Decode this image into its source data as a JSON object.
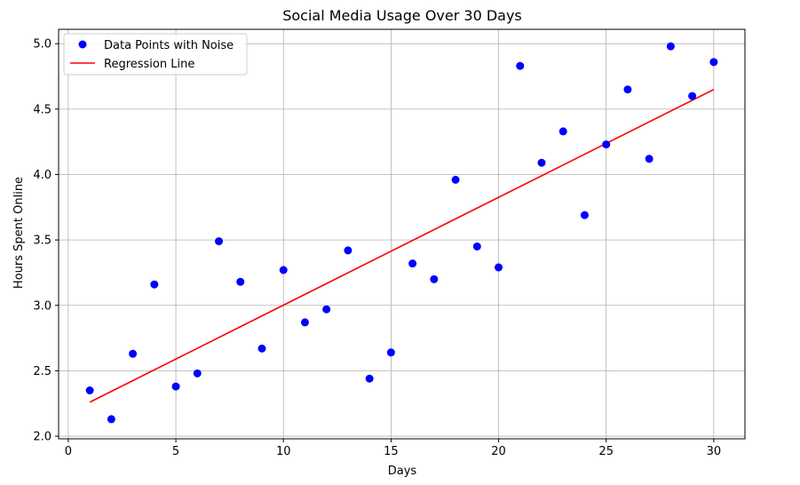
{
  "chart_data": {
    "type": "scatter",
    "title": "Social Media Usage Over 30 Days",
    "xlabel": "Days",
    "ylabel": "Hours Spent Online",
    "xlim": [
      -0.45,
      31.45
    ],
    "ylim": [
      1.98,
      5.11
    ],
    "x_ticks": [
      0,
      5,
      10,
      15,
      20,
      25,
      30
    ],
    "x_tick_labels": [
      "0",
      "5",
      "10",
      "15",
      "20",
      "25",
      "30"
    ],
    "y_ticks": [
      2.0,
      2.5,
      3.0,
      3.5,
      4.0,
      4.5,
      5.0
    ],
    "y_tick_labels": [
      "2.0",
      "2.5",
      "3.0",
      "3.5",
      "4.0",
      "4.5",
      "5.0"
    ],
    "grid": true,
    "legend_position": "top-left",
    "series": [
      {
        "name": "Data Points with Noise",
        "kind": "scatter",
        "color": "#0000ff",
        "x": [
          1,
          2,
          3,
          4,
          5,
          6,
          7,
          8,
          9,
          10,
          11,
          12,
          13,
          14,
          15,
          16,
          17,
          18,
          19,
          20,
          21,
          22,
          23,
          24,
          25,
          26,
          27,
          28,
          29,
          30
        ],
        "y": [
          2.35,
          2.13,
          2.63,
          3.16,
          2.38,
          2.48,
          3.49,
          3.18,
          2.67,
          3.27,
          2.87,
          2.97,
          3.42,
          2.44,
          2.64,
          3.32,
          3.2,
          3.96,
          3.45,
          3.29,
          4.83,
          4.09,
          4.33,
          3.69,
          4.23,
          4.65,
          4.12,
          4.98,
          4.6,
          4.86
        ]
      },
      {
        "name": "Regression Line",
        "kind": "line",
        "color": "#ff0000",
        "x": [
          1,
          30
        ],
        "y": [
          2.26,
          4.65
        ]
      }
    ]
  }
}
